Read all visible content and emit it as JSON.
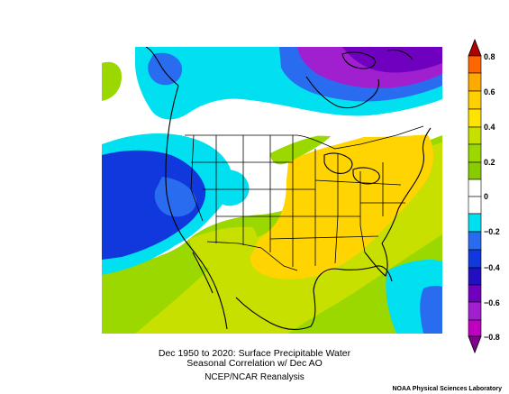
{
  "caption": {
    "line1": "Dec 1950 to 2020: Surface Precipitable Water",
    "line2": "Seasonal Correlation w/ Dec AO",
    "line3": "NCEP/NCAR Reanalysis"
  },
  "credit": "NOAA Physical Sciences Laboratory",
  "colorbar": {
    "labels": [
      "0.8",
      "0.6",
      "0.4",
      "0.2",
      "0",
      "−0.2",
      "−0.4",
      "−0.6",
      "−0.8"
    ],
    "colors": [
      "#b00000",
      "#ff6600",
      "#ffaa00",
      "#ffdd00",
      "#aadd00",
      "#ffffff",
      "#00e5e5",
      "#0066ff",
      "#0000cc",
      "#7a00cc",
      "#cc00cc",
      "#8000a0"
    ]
  },
  "map": {
    "region": "North America",
    "palette": {
      "neg_strong": "#7000c0",
      "neg_purple": "#a020d0",
      "neg_blue": "#1038dd",
      "neg_mid": "#2a6cf0",
      "neg_cyan": "#00e0f0",
      "zero": "#ffffff",
      "pos_green": "#9ad800",
      "pos_lime": "#c8e000",
      "pos_yellow": "#ffd400"
    }
  }
}
